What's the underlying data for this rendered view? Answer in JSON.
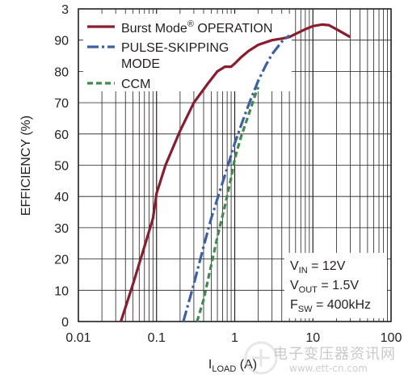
{
  "chart_data": {
    "type": "line",
    "x_scale": "log",
    "xlim": [
      0.01,
      100
    ],
    "ylim": [
      0,
      100
    ],
    "x_ticks": [
      "0.01",
      "0.1",
      "1",
      "10",
      "100"
    ],
    "y_ticks": [
      "0",
      "10",
      "20",
      "30",
      "40",
      "50",
      "60",
      "70",
      "80",
      "90"
    ],
    "top_tick_label": "3",
    "ylabel": "EFFICIENCY (%)",
    "xlabel_main": "I",
    "xlabel_sub": "LOAD",
    "xlabel_unit": " (A)",
    "grid": true,
    "legend_position": "top-left",
    "legend": [
      {
        "text": "Burst Mode",
        "sup": "®",
        "after": " OPERATION"
      },
      {
        "text": "PULSE-SKIPPING"
      },
      {
        "text": "MODE"
      },
      {
        "text": "CCM"
      }
    ],
    "annotations": [
      {
        "main": "V",
        "sub": "IN",
        "rest": " = 12V"
      },
      {
        "main": "V",
        "sub": "OUT",
        "rest": " = 1.5V"
      },
      {
        "main": "F",
        "sub": "SW",
        "rest": " = 400kHz"
      }
    ],
    "series": [
      {
        "key": "burst",
        "color": "#8b1c2e",
        "dash": "solid",
        "x": [
          0.035,
          0.05,
          0.07,
          0.09,
          0.1,
          0.13,
          0.2,
          0.3,
          0.45,
          0.6,
          0.75,
          0.9,
          1.0,
          1.2,
          1.5,
          2.0,
          3.0,
          4.0,
          5.0,
          6.0,
          8.0,
          10.0,
          13.0,
          16.0,
          20.0,
          30.0
        ],
        "y": [
          0,
          12,
          24,
          33,
          41,
          50,
          61,
          70,
          76,
          80,
          81.5,
          81.5,
          82.5,
          84.5,
          86.5,
          88.5,
          90.0,
          90.5,
          91.0,
          92.0,
          93.5,
          94.5,
          95.0,
          94.8,
          93.5,
          91.0
        ]
      },
      {
        "key": "pulse",
        "color": "#3b5fa8",
        "dash": "dashdot",
        "x": [
          0.22,
          0.3,
          0.4,
          0.5,
          0.65,
          0.8,
          1.0,
          1.3,
          1.6,
          2.0,
          2.5,
          3.0,
          4.0,
          5.0
        ],
        "y": [
          0,
          12,
          24,
          33,
          42,
          49,
          57,
          65,
          71,
          77,
          82,
          85.5,
          89.5,
          91.5
        ]
      },
      {
        "key": "ccm",
        "color": "#3f8a4a",
        "dash": "dash",
        "x": [
          0.33,
          0.4,
          0.5,
          0.6,
          0.75,
          0.9,
          1.0,
          1.2,
          1.5,
          1.8,
          2.0
        ],
        "y": [
          0,
          7,
          18,
          27,
          37,
          46,
          52,
          59,
          66,
          72,
          75
        ]
      }
    ]
  },
  "watermark": {
    "cn": "电子变压器资讯网",
    "url": "www.ett-cn.com"
  }
}
